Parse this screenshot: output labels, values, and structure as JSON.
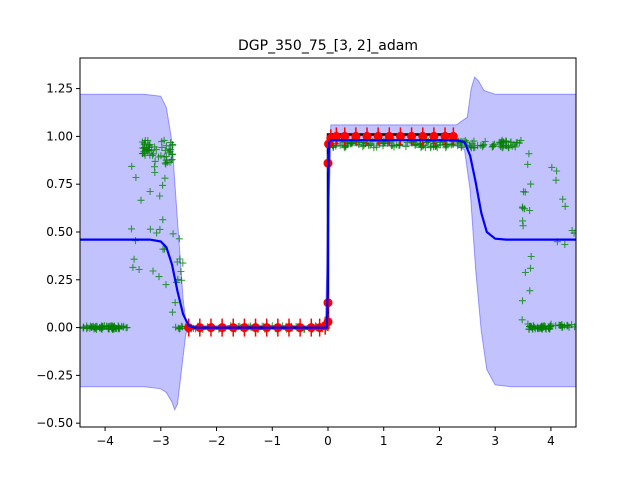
{
  "chart_data": {
    "type": "line",
    "title": "DGP_350_75_[3, 2]_adam",
    "xlabel": "",
    "ylabel": "",
    "xlim": [
      -4.45,
      4.45
    ],
    "ylim": [
      -0.52,
      1.41
    ],
    "grid": false,
    "xticks": [
      -4,
      -3,
      -2,
      -1,
      0,
      1,
      2,
      3,
      4
    ],
    "xtick_labels": [
      "−4",
      "−3",
      "−2",
      "−1",
      "0",
      "1",
      "2",
      "3",
      "4"
    ],
    "yticks": [
      -0.5,
      -0.25,
      0.0,
      0.25,
      0.5,
      0.75,
      1.0,
      1.25
    ],
    "ytick_labels": [
      "−0.50",
      "−0.25",
      "0.00",
      "0.25",
      "0.50",
      "0.75",
      "1.00",
      "1.25"
    ],
    "colors": {
      "mean": "#0000ff",
      "band": "#0000ff",
      "samples": "#008000",
      "train": "#ff0000",
      "truth": "#000000"
    },
    "series": [
      {
        "role": "predictive-mean",
        "style": "blue line",
        "x": [
          -4.45,
          -3.4,
          -3.2,
          -3.0,
          -2.9,
          -2.8,
          -2.7,
          -2.6,
          -2.5,
          -2.4,
          -0.02,
          -0.01,
          0.0,
          0.01,
          0.02,
          0.05,
          2.3,
          2.45,
          2.55,
          2.65,
          2.75,
          2.85,
          3.0,
          3.2,
          4.45
        ],
        "y": [
          0.46,
          0.46,
          0.46,
          0.45,
          0.42,
          0.33,
          0.19,
          0.07,
          0.01,
          0.0,
          0.0,
          0.15,
          0.5,
          0.85,
          0.97,
          0.98,
          0.98,
          0.97,
          0.9,
          0.76,
          0.6,
          0.5,
          0.465,
          0.46,
          0.46
        ]
      },
      {
        "role": "upper-uncertainty-bound",
        "style": "blue shaded band",
        "x": [
          -4.45,
          -3.3,
          -3.0,
          -2.9,
          -2.8,
          -2.7,
          -2.6,
          -2.55,
          -2.45,
          -2.3,
          -0.05,
          0.0,
          0.05,
          2.3,
          2.5,
          2.57,
          2.63,
          2.7,
          2.8,
          3.0,
          3.3,
          4.45
        ],
        "y": [
          1.22,
          1.22,
          1.21,
          1.15,
          0.97,
          0.56,
          0.15,
          0.03,
          0.01,
          0.01,
          0.01,
          0.5,
          1.06,
          1.06,
          1.1,
          1.25,
          1.31,
          1.29,
          1.24,
          1.22,
          1.22,
          1.22
        ]
      },
      {
        "role": "lower-uncertainty-bound",
        "style": "blue shaded band",
        "x": [
          -4.45,
          -3.3,
          -3.0,
          -2.9,
          -2.8,
          -2.75,
          -2.7,
          -2.62,
          -2.55,
          -2.45,
          -2.3,
          -0.05,
          0.0,
          0.05,
          2.3,
          2.45,
          2.55,
          2.65,
          2.75,
          2.85,
          3.0,
          3.3,
          4.45
        ],
        "y": [
          -0.31,
          -0.31,
          -0.32,
          -0.34,
          -0.39,
          -0.43,
          -0.4,
          -0.2,
          -0.03,
          -0.01,
          -0.01,
          -0.01,
          0.5,
          0.95,
          0.95,
          0.93,
          0.72,
          0.3,
          -0.02,
          -0.22,
          -0.3,
          -0.31,
          -0.31
        ]
      },
      {
        "role": "training-points",
        "style": "red circles",
        "points": [
          [
            -2.5,
            0.0
          ],
          [
            -2.3,
            0.0
          ],
          [
            -2.1,
            0.0
          ],
          [
            -1.9,
            0.0
          ],
          [
            -1.7,
            0.0
          ],
          [
            -1.5,
            0.0
          ],
          [
            -1.3,
            0.0
          ],
          [
            -1.1,
            0.0
          ],
          [
            -0.9,
            0.0
          ],
          [
            -0.7,
            0.0
          ],
          [
            -0.5,
            0.0
          ],
          [
            -0.3,
            0.0
          ],
          [
            -0.15,
            0.0
          ],
          [
            -0.05,
            0.01
          ],
          [
            0.0,
            0.03
          ],
          [
            0.0,
            0.13
          ],
          [
            0.0,
            0.86
          ],
          [
            0.01,
            0.96
          ],
          [
            0.05,
            0.99
          ],
          [
            0.15,
            1.0
          ],
          [
            0.3,
            1.0
          ],
          [
            0.5,
            1.0
          ],
          [
            0.7,
            1.0
          ],
          [
            0.9,
            1.0
          ],
          [
            1.1,
            1.0
          ],
          [
            1.3,
            1.0
          ],
          [
            1.5,
            1.0
          ],
          [
            1.7,
            1.0
          ],
          [
            1.9,
            1.0
          ],
          [
            2.1,
            1.0
          ],
          [
            2.25,
            1.0
          ]
        ]
      },
      {
        "role": "ground-truth",
        "style": "black step",
        "x": [
          -2.5,
          0.0,
          0.0,
          2.3
        ],
        "y": [
          0.0,
          0.0,
          1.01,
          1.01
        ]
      }
    ]
  }
}
